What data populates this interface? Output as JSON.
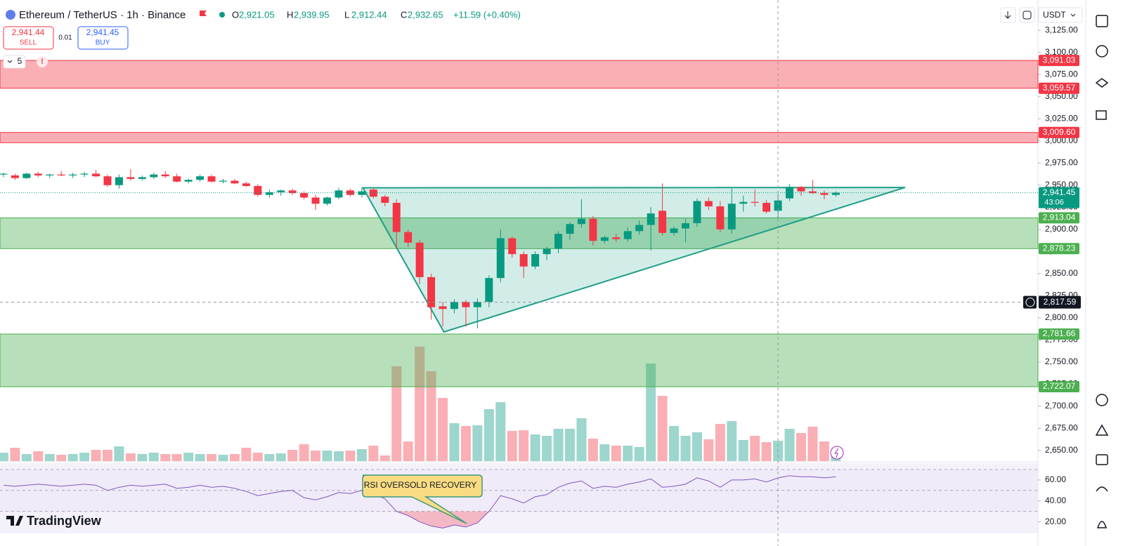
{
  "header": {
    "symbol": "Ethereum / TetherUS · 1h · Binance",
    "ohlc": [
      {
        "key": "O",
        "value": "2,921.05"
      },
      {
        "key": "H",
        "value": "2,939.95"
      },
      {
        "key": "L",
        "value": "2,912.44"
      },
      {
        "key": "C",
        "value": "2,932.65"
      }
    ],
    "change": "+11.59 (+0.40%)",
    "sell": {
      "price": "2,941.44",
      "label": "SELL"
    },
    "spread": "0.01",
    "buy": {
      "price": "2,941.45",
      "label": "BUY"
    },
    "indicators_count": "5",
    "alert": "!",
    "currency": "USDT",
    "brand": "TradingView"
  },
  "chart_data": {
    "type": "candlestick",
    "up_color": "#089981",
    "down_color": "#f23645",
    "open": [
      2962,
      2961,
      2958,
      2963,
      2961,
      2962,
      2961,
      2962,
      2963,
      2960,
      2950,
      2959,
      2957,
      2959,
      2962,
      2960,
      2954,
      2956,
      2960,
      2954,
      2955,
      2952,
      2949,
      2939,
      2942,
      2944,
      2941,
      2936,
      2929,
      2936,
      2944,
      2939,
      2945,
      2937,
      2930,
      2897,
      2885,
      2846,
      2813,
      2810,
      2818,
      2812,
      2818,
      2845,
      2890,
      2872,
      2858,
      2872,
      2878,
      2895,
      2906,
      2912,
      2887,
      2891,
      2889,
      2898,
      2905,
      2921,
      2896,
      2901,
      2907,
      2932,
      2926,
      2900,
      2929,
      2931,
      2930,
      2921.05,
      2935,
      2948,
      2943,
      2941,
      2939
    ],
    "high": [
      2964,
      2963,
      2964,
      2965,
      2963,
      2966,
      2964,
      2965,
      2967,
      2962,
      2962,
      2968,
      2961,
      2964,
      2966,
      2963,
      2957,
      2962,
      2962,
      2957,
      2957,
      2954,
      2951,
      2945,
      2945,
      2946,
      2943,
      2939,
      2937,
      2947,
      2946,
      2947,
      2947,
      2939,
      2934,
      2900,
      2888,
      2850,
      2818,
      2821,
      2820,
      2822,
      2848,
      2900,
      2892,
      2875,
      2875,
      2880,
      2898,
      2908,
      2934,
      2915,
      2893,
      2895,
      2902,
      2910,
      2925,
      2952,
      2903,
      2912,
      2935,
      2936,
      2932,
      2946,
      2938,
      2945,
      2933,
      2939.95,
      2951,
      2949,
      2956,
      2944,
      2943
    ],
    "low": [
      2959,
      2956,
      2957,
      2959,
      2958,
      2960,
      2958,
      2959,
      2959,
      2948,
      2946,
      2955,
      2955,
      2957,
      2958,
      2953,
      2952,
      2954,
      2953,
      2952,
      2951,
      2948,
      2937,
      2936,
      2938,
      2939,
      2934,
      2922,
      2927,
      2934,
      2937,
      2936,
      2935,
      2926,
      2878,
      2880,
      2838,
      2798,
      2790,
      2805,
      2790,
      2788,
      2812,
      2840,
      2868,
      2845,
      2855,
      2865,
      2873,
      2888,
      2902,
      2882,
      2884,
      2886,
      2886,
      2894,
      2876,
      2893,
      2893,
      2885,
      2903,
      2922,
      2897,
      2895,
      2920,
      2926,
      2918,
      2912.44,
      2932,
      2938,
      2940,
      2934,
      2937
    ],
    "close": [
      2963,
      2958,
      2963,
      2961,
      2962,
      2961,
      2962,
      2963,
      2960,
      2950,
      2959,
      2957,
      2959,
      2962,
      2960,
      2954,
      2956,
      2960,
      2954,
      2955,
      2952,
      2949,
      2939,
      2942,
      2944,
      2941,
      2936,
      2929,
      2936,
      2944,
      2939,
      2943,
      2937,
      2930,
      2897,
      2885,
      2846,
      2812,
      2810,
      2818,
      2812,
      2818,
      2845,
      2890,
      2872,
      2858,
      2872,
      2878,
      2895,
      2906,
      2912,
      2887,
      2891,
      2889,
      2898,
      2905,
      2918,
      2896,
      2901,
      2907,
      2932,
      2926,
      2900,
      2929,
      2931,
      2930,
      2920,
      2932.65,
      2948,
      2943,
      2941,
      2939,
      2941.45
    ],
    "volume": [
      12,
      19,
      10,
      14,
      10,
      9,
      10,
      12,
      16,
      16,
      21,
      11,
      10,
      12,
      10,
      10,
      12,
      10,
      10,
      9,
      10,
      19,
      12,
      10,
      11,
      16,
      24,
      15,
      15,
      14,
      15,
      17,
      22,
      8,
      135,
      28,
      163,
      128,
      90,
      54,
      50,
      51,
      74,
      84,
      43,
      44,
      38,
      36,
      46,
      46,
      61,
      32,
      24,
      22,
      22,
      20,
      139,
      93,
      50,
      36,
      41,
      31,
      53,
      57,
      30,
      36,
      27,
      29,
      46,
      40,
      49,
      28,
      8
    ],
    "rsi": [
      55,
      54,
      55,
      56,
      55,
      54,
      55,
      56,
      55,
      50,
      53,
      55,
      54,
      55,
      56,
      52,
      53,
      55,
      53,
      54,
      52,
      49,
      45,
      47,
      49,
      50,
      43,
      41,
      44,
      48,
      47,
      50,
      47,
      42,
      30,
      26,
      20,
      16,
      14,
      17,
      15,
      19,
      30,
      45,
      42,
      38,
      44,
      46,
      53,
      57,
      59,
      52,
      54,
      53,
      56,
      58,
      61,
      53,
      54,
      56,
      62,
      59,
      53,
      60,
      60,
      61,
      58,
      62,
      64,
      63,
      63,
      62,
      63
    ],
    "rsi_color": "#7e57c2",
    "ylim": [
      2638,
      3153
    ],
    "yticks": [
      {
        "value": 2650,
        "label": "2,650.00"
      },
      {
        "value": 2675,
        "label": "2,675.00"
      },
      {
        "value": 2700,
        "label": "2,700.00"
      },
      {
        "value": 2725,
        "label": "2,725.00"
      },
      {
        "value": 2750,
        "label": "2,750.00"
      },
      {
        "value": 2775,
        "label": "2,775.00"
      },
      {
        "value": 2800,
        "label": "2,800.00"
      },
      {
        "value": 2825,
        "label": "2,825.00"
      },
      {
        "value": 2850,
        "label": "2,850.00"
      },
      {
        "value": 2875,
        "label": "2,875.00"
      },
      {
        "value": 2900,
        "label": "2,900.00"
      },
      {
        "value": 2925,
        "label": "2,925.00"
      },
      {
        "value": 2950,
        "label": "2,950.00"
      },
      {
        "value": 2975,
        "label": "2,975.00"
      },
      {
        "value": 3000,
        "label": "3,000.00"
      },
      {
        "value": 3025,
        "label": "3,025.00"
      },
      {
        "value": 3050,
        "label": "3,050.00"
      },
      {
        "value": 3075,
        "label": "3,075.00"
      },
      {
        "value": 3100,
        "label": "3,100.00"
      },
      {
        "value": 3125,
        "label": "3,125.00"
      }
    ],
    "rsi_ylim": [
      9,
      76
    ],
    "rsi_yticks": [
      {
        "value": 20,
        "label": "20.00"
      },
      {
        "value": 40,
        "label": "40.00"
      },
      {
        "value": 60,
        "label": "60.00"
      }
    ],
    "rsi_levels": [
      70,
      50,
      30
    ],
    "grid": false,
    "zones": [
      {
        "top": {
          "value": 3091.03,
          "label": "3,091.03"
        },
        "bottom": {
          "value": 3059.57,
          "label": "3,059.57"
        },
        "color": "#f23645"
      },
      {
        "top": {
          "value": 3009.6,
          "label": "3,009.60"
        },
        "bottom": 2998,
        "color": "#f23645"
      },
      {
        "top": {
          "value": 2913.04,
          "label": "2,913.04"
        },
        "bottom": {
          "value": 2878.23,
          "label": "2,878.23"
        },
        "color": "#4caf50"
      },
      {
        "top": {
          "value": 2781.66,
          "label": "2,781.66"
        },
        "bottom": {
          "value": 2722.07,
          "label": "2,722.07"
        },
        "color": "#4caf50"
      }
    ],
    "triangle": [
      {
        "index": 31.1,
        "price": 2947
      },
      {
        "index": 38.1,
        "price": 2784
      },
      {
        "index": 78,
        "price": 2947.4
      }
    ],
    "last_price": {
      "value": 2941.45,
      "label": "2,941.45",
      "countdown": "43:06"
    },
    "crosshair": {
      "index": 67,
      "price": {
        "value": 2817.59,
        "label": "2,817.59"
      }
    },
    "annotation": "RSI OVERSOLD RECOVERY"
  }
}
